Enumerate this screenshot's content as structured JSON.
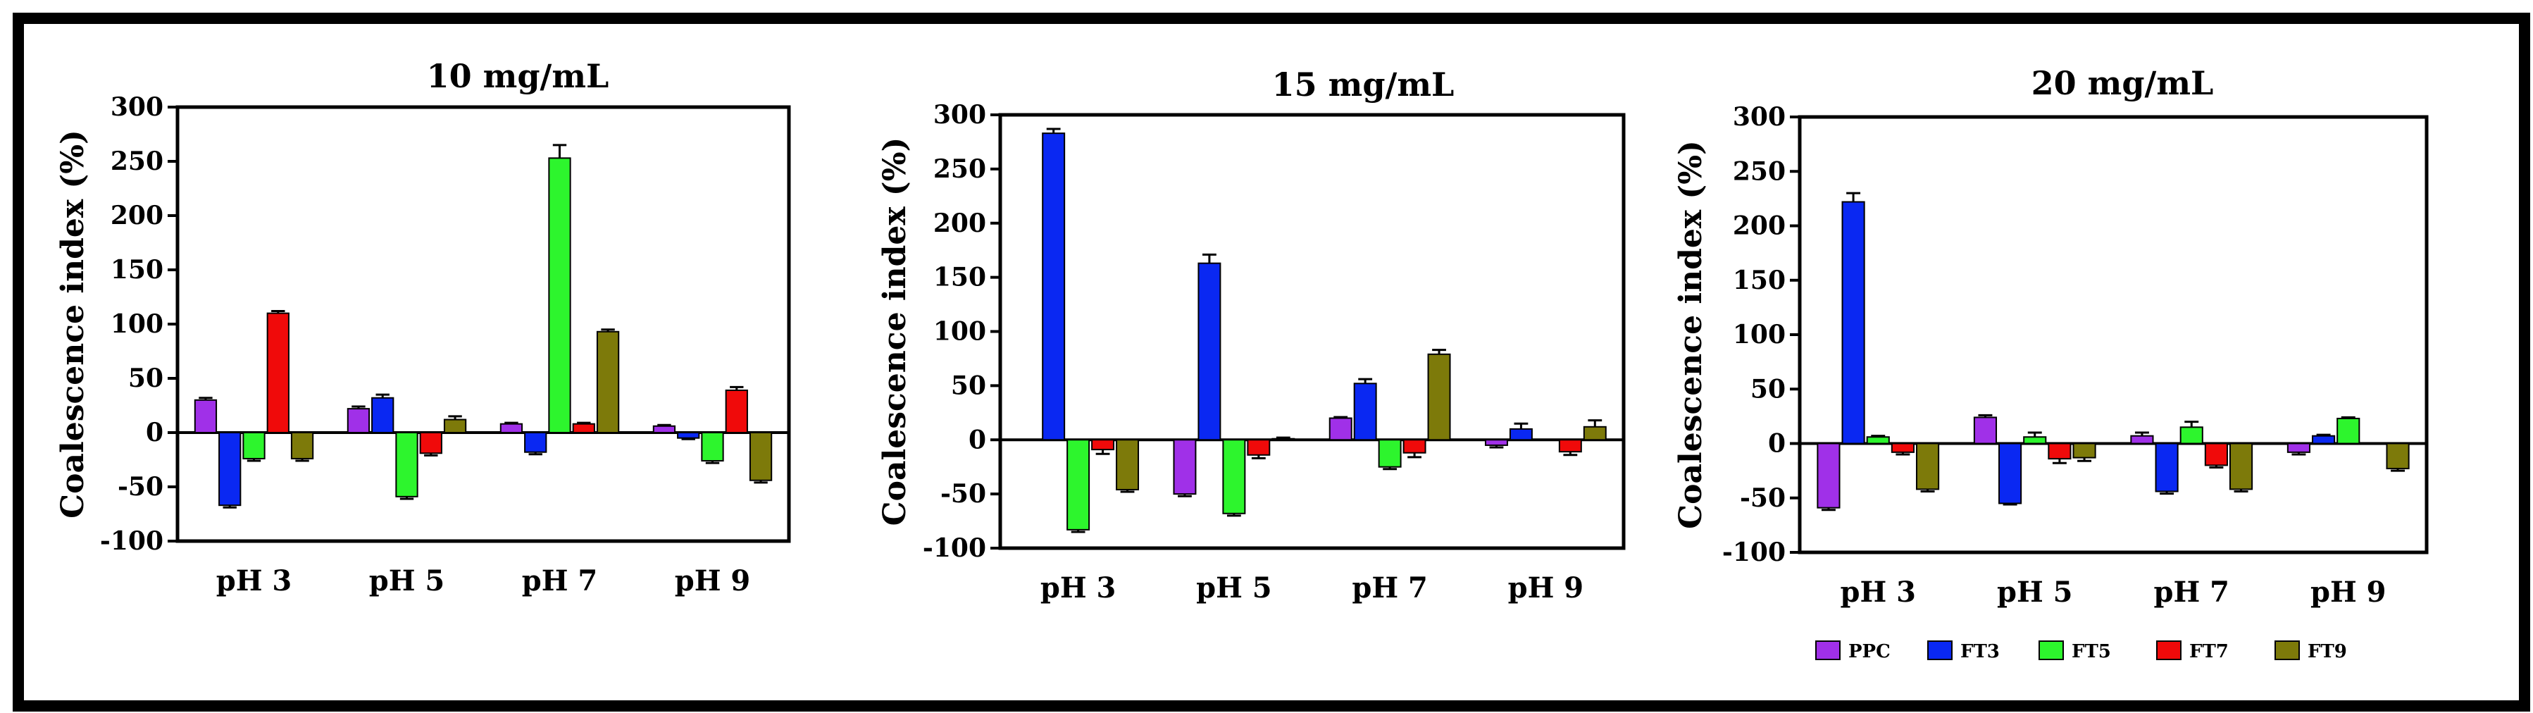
{
  "series_colors": {
    "PPC": "#a030e8",
    "FT3": "#0a28f2",
    "FT5": "#2df52d",
    "FT7": "#f00a0a",
    "FT9": "#7d7a0a"
  },
  "legend": [
    "PPC",
    "FT3",
    "FT5",
    "FT7",
    "FT9"
  ],
  "chart_data": [
    {
      "type": "bar",
      "title": "10 mg/mL",
      "ylabel": "Coalescence index (%)",
      "xlabel": "",
      "ylim": [
        -100,
        300
      ],
      "yticks": [
        "-100",
        "-50",
        "0",
        "50",
        "100",
        "150",
        "200",
        "250",
        "300"
      ],
      "categories": [
        "pH 3",
        "pH 5",
        "pH 7",
        "pH 9"
      ],
      "series": [
        {
          "name": "PPC",
          "values": [
            30,
            22,
            8,
            6
          ],
          "errors": [
            2,
            2,
            1,
            1
          ]
        },
        {
          "name": "FT3",
          "values": [
            -67,
            32,
            -18,
            -5
          ],
          "errors": [
            2,
            3,
            2,
            1
          ]
        },
        {
          "name": "FT5",
          "values": [
            -24,
            -59,
            253,
            -26
          ],
          "errors": [
            2,
            2,
            12,
            2
          ]
        },
        {
          "name": "FT7",
          "values": [
            110,
            -19,
            8,
            39
          ],
          "errors": [
            2,
            2,
            1,
            3
          ]
        },
        {
          "name": "FT9",
          "values": [
            -24,
            12,
            93,
            -44
          ],
          "errors": [
            2,
            3,
            2,
            2
          ]
        }
      ]
    },
    {
      "type": "bar",
      "title": "15 mg/mL",
      "ylabel": "Coalescence index (%)",
      "xlabel": "",
      "ylim": [
        -100,
        300
      ],
      "yticks": [
        "-100",
        "-50",
        "0",
        "50",
        "100",
        "150",
        "200",
        "250",
        "300"
      ],
      "categories": [
        "pH 3",
        "pH 5",
        "pH 7",
        "pH 9"
      ],
      "series": [
        {
          "name": "PPC",
          "values": [
            0,
            -50,
            20,
            -5
          ],
          "errors": [
            0,
            2,
            1,
            2
          ]
        },
        {
          "name": "FT3",
          "values": [
            283,
            163,
            52,
            10
          ],
          "errors": [
            4,
            8,
            4,
            5
          ]
        },
        {
          "name": "FT5",
          "values": [
            -83,
            -68,
            -25,
            0
          ],
          "errors": [
            2,
            2,
            2,
            0
          ]
        },
        {
          "name": "FT7",
          "values": [
            -9,
            -14,
            -12,
            -11
          ],
          "errors": [
            4,
            3,
            4,
            3
          ]
        },
        {
          "name": "FT9",
          "values": [
            -46,
            1,
            79,
            12
          ],
          "errors": [
            2,
            1,
            4,
            6
          ]
        }
      ]
    },
    {
      "type": "bar",
      "title": "20 mg/mL",
      "ylabel": "Coalescence index (%)",
      "xlabel": "",
      "ylim": [
        -100,
        300
      ],
      "yticks": [
        "-100",
        "-50",
        "0",
        "50",
        "100",
        "150",
        "200",
        "250",
        "300"
      ],
      "categories": [
        "pH 3",
        "pH 5",
        "pH 7",
        "pH 9"
      ],
      "series": [
        {
          "name": "PPC",
          "values": [
            -59,
            24,
            7,
            -8
          ],
          "errors": [
            2,
            2,
            3,
            2
          ]
        },
        {
          "name": "FT3",
          "values": [
            222,
            -55,
            -44,
            7
          ],
          "errors": [
            8,
            1,
            2,
            1
          ]
        },
        {
          "name": "FT5",
          "values": [
            6,
            6,
            15,
            23
          ],
          "errors": [
            1,
            4,
            5,
            1
          ]
        },
        {
          "name": "FT7",
          "values": [
            -8,
            -14,
            -20,
            0
          ],
          "errors": [
            2,
            4,
            2,
            0
          ]
        },
        {
          "name": "FT9",
          "values": [
            -42,
            -13,
            -42,
            -23
          ],
          "errors": [
            2,
            3,
            2,
            2
          ]
        }
      ]
    }
  ]
}
